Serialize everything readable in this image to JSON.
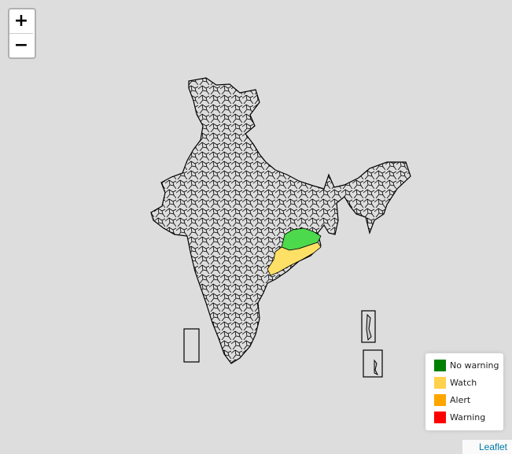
{
  "zoom": {
    "in_label": "+",
    "out_label": "−"
  },
  "legend": {
    "items": [
      {
        "label": "No warning",
        "color": "#008000"
      },
      {
        "label": "Watch",
        "color": "#ffd24d"
      },
      {
        "label": "Alert",
        "color": "#ffa500"
      },
      {
        "label": "Warning",
        "color": "#ff0000"
      }
    ]
  },
  "regions": {
    "no_warning_fill": "#4cd94c",
    "watch_fill": "#ffe066"
  },
  "attribution": {
    "link_label": "Leaflet"
  }
}
